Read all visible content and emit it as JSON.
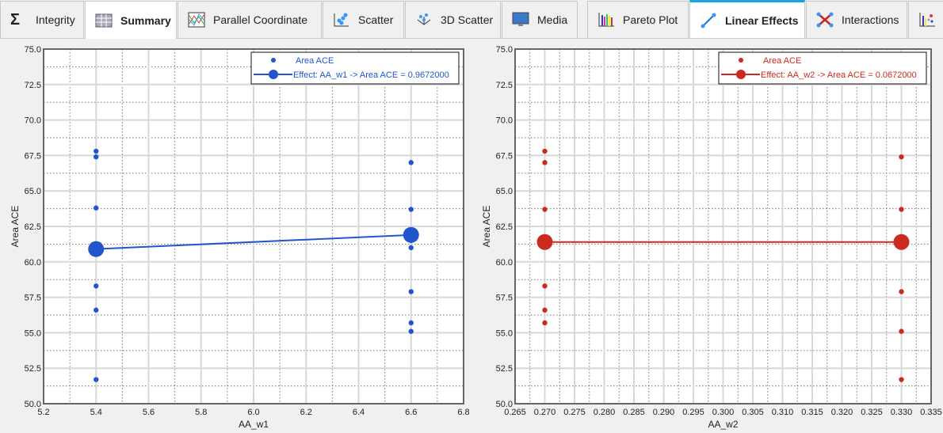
{
  "tabs": [
    {
      "label": "Integrity",
      "icon": "sigma-icon"
    },
    {
      "label": "Summary",
      "icon": "table-icon",
      "active": true
    },
    {
      "label": "Parallel Coordinate",
      "icon": "parallel-coordinate-icon"
    },
    {
      "label": "Scatter",
      "icon": "scatter-icon"
    },
    {
      "label": "3D Scatter",
      "icon": "3d-scatter-icon"
    },
    {
      "label": "Media",
      "icon": "monitor-icon"
    },
    {
      "label": "Pareto Plot",
      "icon": "pareto-icon"
    },
    {
      "label": "Linear Effects",
      "icon": "linear-effects-icon",
      "active": true
    },
    {
      "label": "Interactions",
      "icon": "interactions-icon"
    }
  ],
  "chart_data": [
    {
      "type": "scatter",
      "title": "",
      "xlabel": "AA_w1",
      "ylabel": "Area ACE",
      "color": "#2255cc",
      "xlim": [
        5.2,
        6.8
      ],
      "ylim": [
        50,
        75
      ],
      "xticks": [
        "5.2",
        "5.4",
        "5.6",
        "5.8",
        "6.0",
        "6.2",
        "6.4",
        "6.6",
        "6.8"
      ],
      "yticks": [
        "50.0",
        "52.5",
        "55.0",
        "57.5",
        "60.0",
        "62.5",
        "65.0",
        "67.5",
        "70.0",
        "72.5",
        "75.0"
      ],
      "points": {
        "x": [
          5.4,
          5.4,
          5.4,
          5.4,
          5.4,
          5.4,
          6.6,
          6.6,
          6.6,
          6.6,
          6.6,
          6.6,
          6.6
        ],
        "y": [
          67.8,
          67.4,
          63.8,
          58.3,
          56.6,
          51.7,
          67.0,
          63.7,
          61.5,
          61.0,
          57.9,
          55.7,
          55.1
        ]
      },
      "effect": {
        "x": [
          5.4,
          6.6
        ],
        "y": [
          60.9,
          61.9
        ]
      },
      "legend": [
        "Area ACE",
        "Effect: AA_w1 -> Area ACE =  0.9672000"
      ],
      "legend_position": "top-right"
    },
    {
      "type": "scatter",
      "title": "",
      "xlabel": "AA_w2",
      "ylabel": "Area ACE",
      "color": "#cc2a1e",
      "xlim": [
        0.265,
        0.335
      ],
      "ylim": [
        50,
        75
      ],
      "xticks": [
        "0.265",
        "0.270",
        "0.275",
        "0.280",
        "0.285",
        "0.290",
        "0.295",
        "0.300",
        "0.305",
        "0.310",
        "0.315",
        "0.320",
        "0.325",
        "0.330",
        "0.335"
      ],
      "yticks": [
        "50.0",
        "52.5",
        "55.0",
        "57.5",
        "60.0",
        "62.5",
        "65.0",
        "67.5",
        "70.0",
        "72.5",
        "75.0"
      ],
      "points": {
        "x": [
          0.27,
          0.27,
          0.27,
          0.27,
          0.27,
          0.27,
          0.27,
          0.33,
          0.33,
          0.33,
          0.33,
          0.33,
          0.33
        ],
        "y": [
          67.8,
          67.0,
          63.7,
          61.1,
          58.3,
          56.6,
          55.7,
          67.4,
          63.7,
          61.1,
          57.9,
          55.1,
          51.7
        ]
      },
      "effect": {
        "x": [
          0.27,
          0.33
        ],
        "y": [
          61.4,
          61.4
        ]
      },
      "legend": [
        "Area ACE",
        "Effect: AA_w2 -> Area ACE =  0.0672000"
      ],
      "legend_position": "top-right"
    }
  ]
}
